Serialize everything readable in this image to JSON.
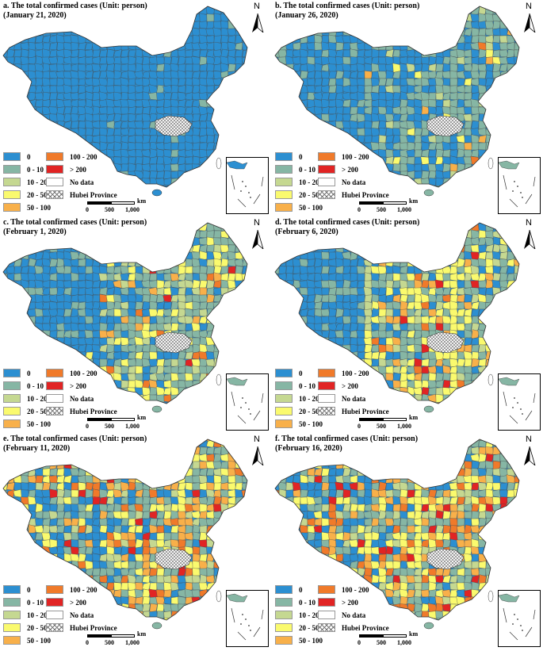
{
  "colors": {
    "c0": "#2c8fd1",
    "c0_10": "#86b6a4",
    "c10_20": "#c5d891",
    "c20_50": "#fafa6e",
    "c50_100": "#f8b04a",
    "c100_200": "#f07a2a",
    "c200": "#e12424",
    "nodata": "#ffffff",
    "border": "#4a4a4a"
  },
  "legend": {
    "items": [
      {
        "label": "0",
        "color_key": "c0"
      },
      {
        "label": "0 - 10",
        "color_key": "c0_10"
      },
      {
        "label": "10 - 20",
        "color_key": "c10_20"
      },
      {
        "label": "20 - 50",
        "color_key": "c20_50"
      },
      {
        "label": "50 - 100",
        "color_key": "c50_100"
      },
      {
        "label": "100 - 200",
        "color_key": "c100_200"
      },
      {
        "label": "> 200",
        "color_key": "c200"
      },
      {
        "label": "No data",
        "color_key": "nodata"
      },
      {
        "label": "Hubei Province",
        "color_key": "hatch"
      }
    ]
  },
  "scale": {
    "unit": "km",
    "ticks": [
      "0",
      "500",
      "1,000"
    ]
  },
  "north": "N",
  "panels": [
    {
      "id": "a",
      "title1": "a. The total confirmed cases (Unit: person)",
      "title2": "(January 21, 2020)",
      "dist": {
        "c0": 0.97,
        "c0_10": 0.03
      }
    },
    {
      "id": "b",
      "title1": "b. The total confirmed cases (Unit: person)",
      "title2": "(January 26, 2020)",
      "dist": {
        "c0": 0.38,
        "c0_10": 0.52,
        "c10_20": 0.05,
        "c20_50": 0.02,
        "c50_100": 0.02,
        "c100_200": 0.01
      }
    },
    {
      "id": "c",
      "title1": "c. The total confirmed cases (Unit: person)",
      "title2": "(February 1, 2020)",
      "dist": {
        "c0": 0.18,
        "c0_10": 0.48,
        "c10_20": 0.1,
        "c20_50": 0.16,
        "c50_100": 0.05,
        "c100_200": 0.02,
        "c200": 0.01
      }
    },
    {
      "id": "d",
      "title1": "d. The total confirmed cases (Unit: person)",
      "title2": "(February 6, 2020)",
      "dist": {
        "c0": 0.14,
        "c0_10": 0.38,
        "c10_20": 0.12,
        "c20_50": 0.2,
        "c50_100": 0.1,
        "c100_200": 0.04,
        "c200": 0.02
      }
    },
    {
      "id": "e",
      "title1": "e. The total confirmed cases (Unit: person)",
      "title2": "(February 11, 2020)",
      "dist": {
        "c0": 0.12,
        "c0_10": 0.32,
        "c10_20": 0.12,
        "c20_50": 0.22,
        "c50_100": 0.12,
        "c100_200": 0.07,
        "c200": 0.03
      }
    },
    {
      "id": "f",
      "title1": "f. The total confirmed cases (Unit: person)",
      "title2": "(February 16, 2020)",
      "dist": {
        "c0": 0.11,
        "c0_10": 0.3,
        "c10_20": 0.12,
        "c20_50": 0.22,
        "c50_100": 0.13,
        "c100_200": 0.08,
        "c200": 0.04
      }
    }
  ]
}
